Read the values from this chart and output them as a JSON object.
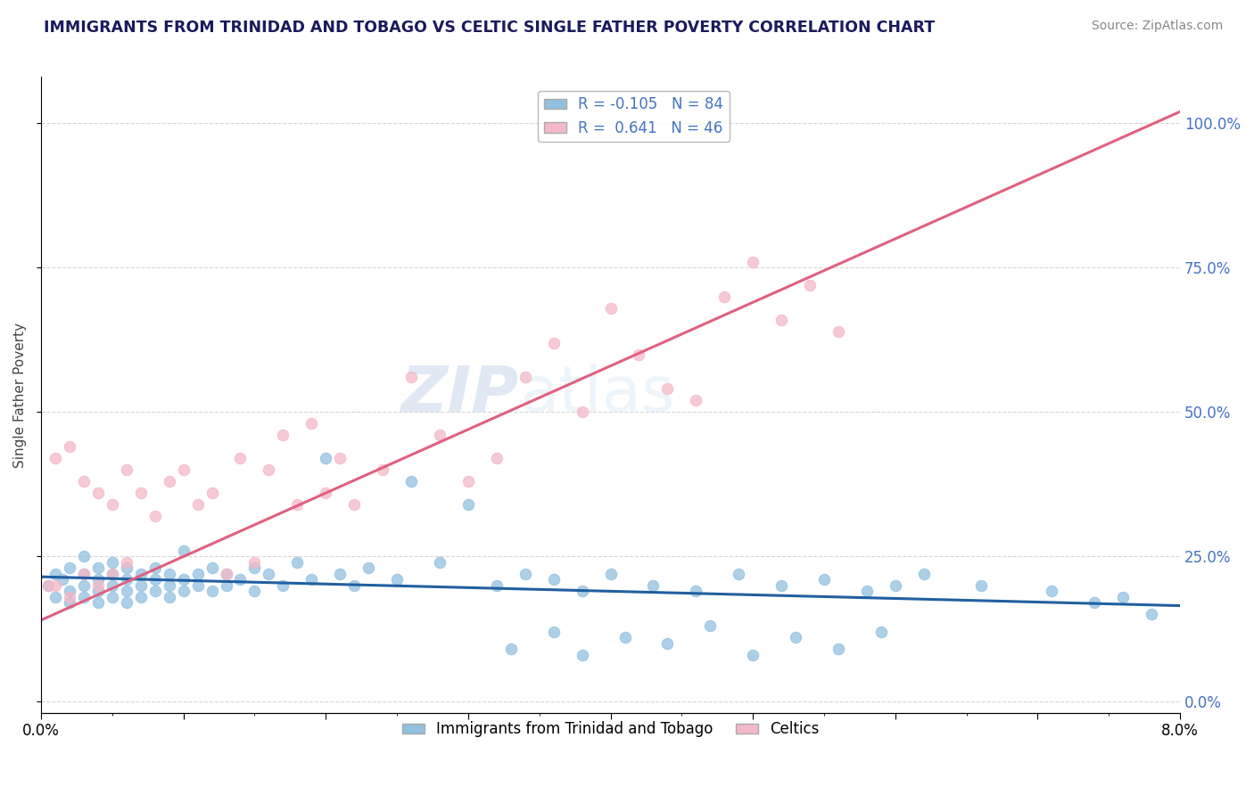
{
  "title": "IMMIGRANTS FROM TRINIDAD AND TOBAGO VS CELTIC SINGLE FATHER POVERTY CORRELATION CHART",
  "source": "Source: ZipAtlas.com",
  "ylabel": "Single Father Poverty",
  "right_yticklabels": [
    "0.0%",
    "25.0%",
    "50.0%",
    "75.0%",
    "100.0%"
  ],
  "xlim": [
    0.0,
    0.08
  ],
  "ylim": [
    -0.02,
    1.08
  ],
  "blue_r": -0.105,
  "blue_n": 84,
  "pink_r": 0.641,
  "pink_n": 46,
  "blue_color": "#92c0e0",
  "pink_color": "#f4b8c8",
  "blue_line_color": "#2060a0",
  "pink_line_color": "#e06080",
  "legend_label_blue": "Immigrants from Trinidad and Tobago",
  "legend_label_pink": "Celtics",
  "watermark_zip": "ZIP",
  "watermark_atlas": "atlas",
  "blue_scatter_x": [
    0.0005,
    0.001,
    0.001,
    0.0015,
    0.002,
    0.002,
    0.002,
    0.003,
    0.003,
    0.003,
    0.003,
    0.004,
    0.004,
    0.004,
    0.004,
    0.005,
    0.005,
    0.005,
    0.005,
    0.006,
    0.006,
    0.006,
    0.006,
    0.007,
    0.007,
    0.007,
    0.008,
    0.008,
    0.008,
    0.009,
    0.009,
    0.009,
    0.01,
    0.01,
    0.01,
    0.011,
    0.011,
    0.012,
    0.012,
    0.013,
    0.013,
    0.014,
    0.015,
    0.015,
    0.016,
    0.017,
    0.018,
    0.019,
    0.02,
    0.021,
    0.022,
    0.023,
    0.025,
    0.026,
    0.028,
    0.03,
    0.032,
    0.034,
    0.036,
    0.038,
    0.04,
    0.043,
    0.046,
    0.049,
    0.052,
    0.055,
    0.058,
    0.062,
    0.066,
    0.071,
    0.074,
    0.076,
    0.078,
    0.06,
    0.033,
    0.036,
    0.038,
    0.041,
    0.044,
    0.047,
    0.05,
    0.053,
    0.056,
    0.059
  ],
  "blue_scatter_y": [
    0.2,
    0.22,
    0.18,
    0.21,
    0.19,
    0.23,
    0.17,
    0.22,
    0.2,
    0.25,
    0.18,
    0.21,
    0.19,
    0.23,
    0.17,
    0.22,
    0.2,
    0.18,
    0.24,
    0.21,
    0.19,
    0.23,
    0.17,
    0.22,
    0.2,
    0.18,
    0.21,
    0.19,
    0.23,
    0.22,
    0.2,
    0.18,
    0.21,
    0.19,
    0.26,
    0.22,
    0.2,
    0.23,
    0.19,
    0.22,
    0.2,
    0.21,
    0.19,
    0.23,
    0.22,
    0.2,
    0.24,
    0.21,
    0.42,
    0.22,
    0.2,
    0.23,
    0.21,
    0.38,
    0.24,
    0.34,
    0.2,
    0.22,
    0.21,
    0.19,
    0.22,
    0.2,
    0.19,
    0.22,
    0.2,
    0.21,
    0.19,
    0.22,
    0.2,
    0.19,
    0.17,
    0.18,
    0.15,
    0.2,
    0.09,
    0.12,
    0.08,
    0.11,
    0.1,
    0.13,
    0.08,
    0.11,
    0.09,
    0.12
  ],
  "pink_scatter_x": [
    0.0005,
    0.001,
    0.001,
    0.002,
    0.002,
    0.003,
    0.003,
    0.004,
    0.004,
    0.005,
    0.005,
    0.006,
    0.006,
    0.007,
    0.008,
    0.009,
    0.01,
    0.011,
    0.012,
    0.013,
    0.014,
    0.015,
    0.016,
    0.017,
    0.018,
    0.019,
    0.02,
    0.021,
    0.022,
    0.024,
    0.026,
    0.028,
    0.03,
    0.032,
    0.034,
    0.036,
    0.038,
    0.04,
    0.042,
    0.044,
    0.046,
    0.048,
    0.05,
    0.052,
    0.054,
    0.056
  ],
  "pink_scatter_y": [
    0.2,
    0.42,
    0.2,
    0.44,
    0.18,
    0.38,
    0.22,
    0.36,
    0.2,
    0.34,
    0.22,
    0.4,
    0.24,
    0.36,
    0.32,
    0.38,
    0.4,
    0.34,
    0.36,
    0.22,
    0.42,
    0.24,
    0.4,
    0.46,
    0.34,
    0.48,
    0.36,
    0.42,
    0.34,
    0.4,
    0.56,
    0.46,
    0.38,
    0.42,
    0.56,
    0.62,
    0.5,
    0.68,
    0.6,
    0.54,
    0.52,
    0.7,
    0.76,
    0.66,
    0.72,
    0.64
  ],
  "blue_line_x0": 0.0,
  "blue_line_x1": 0.08,
  "blue_line_y0": 0.215,
  "blue_line_y1": 0.165,
  "pink_line_x0": 0.0,
  "pink_line_x1": 0.08,
  "pink_line_y0": 0.14,
  "pink_line_y1": 1.02
}
